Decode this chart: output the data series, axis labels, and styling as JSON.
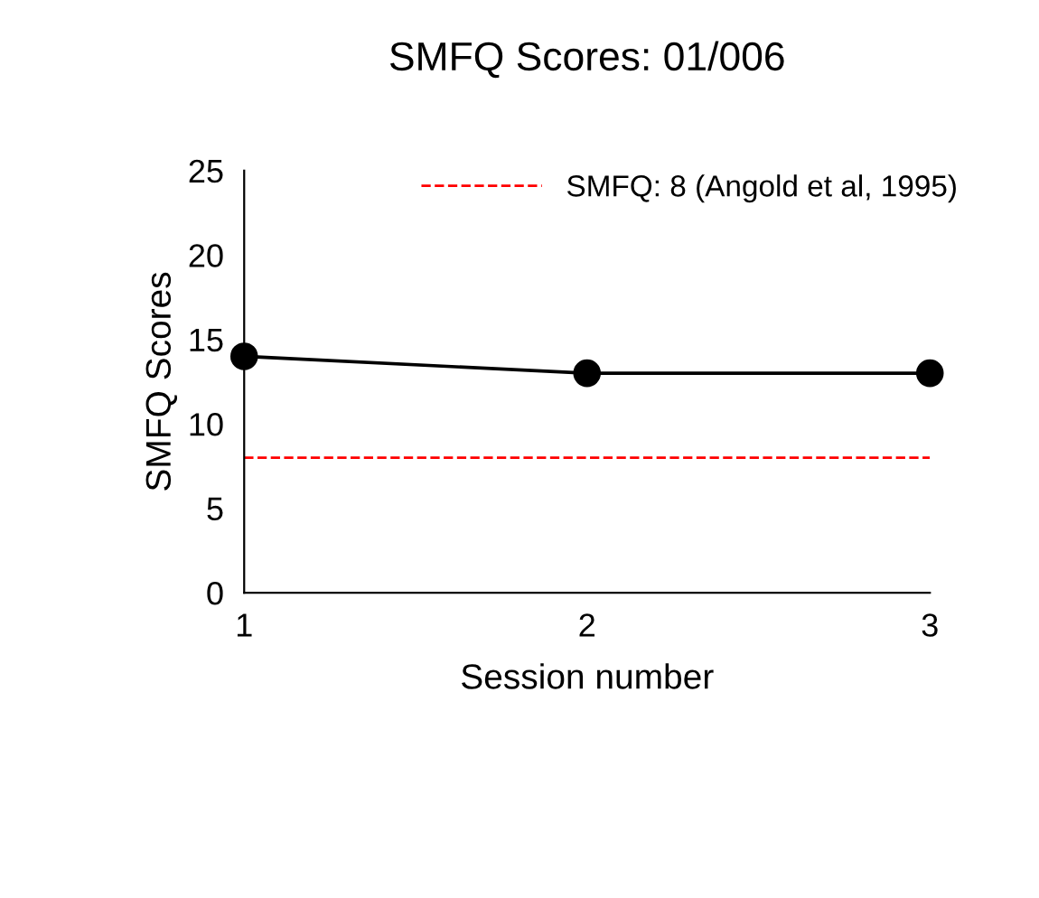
{
  "chart_data": {
    "type": "line",
    "title": "SMFQ Scores: 01/006",
    "xlabel": "Session number",
    "ylabel": "SMFQ Scores",
    "x": [
      1,
      2,
      3
    ],
    "series": [
      {
        "color": "#000000",
        "values": [
          14,
          13,
          13
        ]
      }
    ],
    "xlim": [
      1,
      3
    ],
    "xticks": [
      1,
      2,
      3
    ],
    "ylim": [
      0,
      25
    ],
    "yticks": [
      0,
      5,
      10,
      15,
      20,
      25
    ],
    "ref_lines": [
      {
        "axis": "y",
        "value": 8,
        "label": "SMFQ: 8 (Angold et al, 1995)",
        "color": "#ff0000",
        "line_style": "dashed"
      }
    ],
    "marker": "circle",
    "line_style": "solid",
    "grid": false,
    "legend": "top right"
  }
}
